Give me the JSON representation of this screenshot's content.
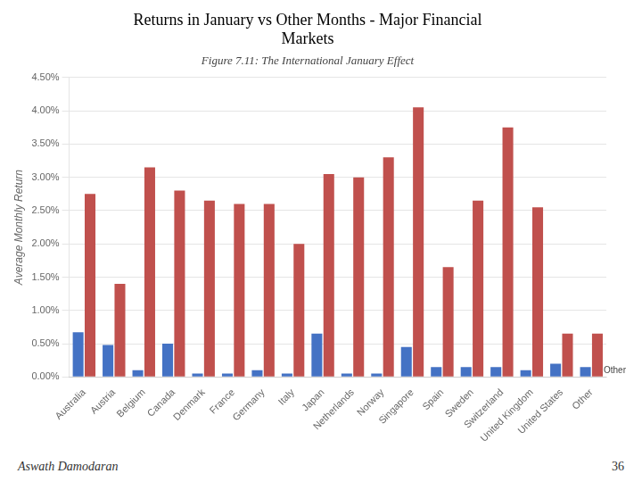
{
  "chart_data": {
    "type": "bar",
    "title": [
      "Returns in January vs Other Months - Major Financial",
      "Markets"
    ],
    "subtitle": "Figure 7.11: The International January Effect",
    "y_label": "Average Monthly Return",
    "footer": [
      "Aswath Damodaran",
      "36"
    ],
    "annotations": [
      {
        "text": "Other",
        "y": 0.0003
      }
    ],
    "categories": [
      "Australia",
      "Austria",
      "Belgium",
      "Canada",
      "Denmark",
      "France",
      "Germany",
      "Italy",
      "Japan",
      "Netherlands",
      "Norway",
      "Singapore",
      "Spain",
      "Sweden",
      "Switzerland",
      "United Kingdom",
      "United States",
      "Other"
    ],
    "series": [
      {
        "color": "#4472C4",
        "values": [
          0.0067,
          0.0048,
          0.001,
          0.005,
          0.0005,
          0.0005,
          0.001,
          0.0005,
          0.0065,
          0.0005,
          0.0005,
          0.0045,
          0.0015,
          0.0015,
          0.0015,
          0.001,
          0.002,
          0.0015
        ]
      },
      {
        "color": "#C0504D",
        "values": [
          0.0275,
          0.014,
          0.0315,
          0.028,
          0.0265,
          0.026,
          0.026,
          0.02,
          0.0305,
          0.03,
          0.033,
          0.0405,
          0.0165,
          0.0265,
          0.0375,
          0.0255,
          0.0065,
          0.0065
        ]
      }
    ],
    "ylim": [
      0,
      0.045
    ],
    "yticks": [
      {
        "value": 0,
        "label": "0.00%"
      },
      {
        "value": 0.005,
        "label": "0.50%"
      },
      {
        "value": 0.01,
        "label": "1.00%"
      },
      {
        "value": 0.015,
        "label": "1.50%"
      },
      {
        "value": 0.02,
        "label": "2.00%"
      },
      {
        "value": 0.025,
        "label": "2.50%"
      },
      {
        "value": 0.03,
        "label": "3.00%"
      },
      {
        "value": 0.035,
        "label": "3.50%"
      },
      {
        "value": 0.04,
        "label": "4.00%"
      },
      {
        "value": 0.045,
        "label": "4.50%"
      }
    ],
    "grid": true
  }
}
